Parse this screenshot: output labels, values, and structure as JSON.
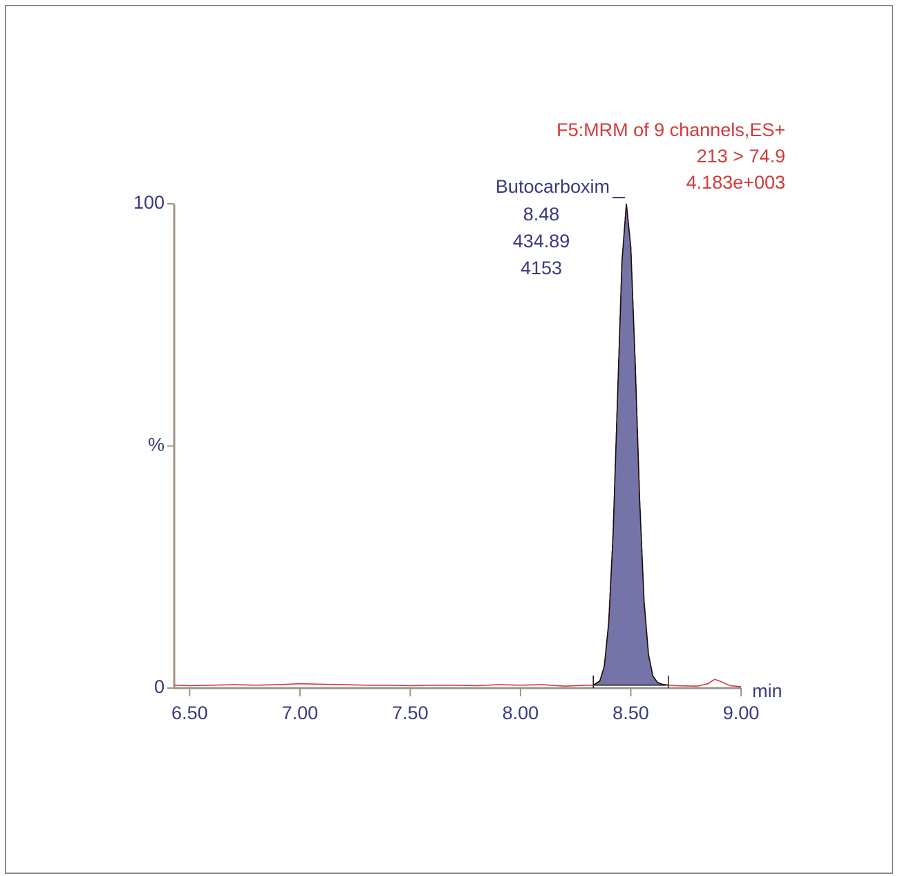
{
  "chart_data": {
    "type": "line",
    "header": [
      "F5:MRM of 9 channels,ES+",
      "213 > 74.9",
      "4.183e+003"
    ],
    "header_color": "#d43a3a",
    "peak_label": {
      "name": "Butocarboxim",
      "lines": [
        8.48,
        434.89,
        4153
      ]
    },
    "x_label": "min",
    "x": [
      6.43,
      6.5,
      6.6,
      6.7,
      6.8,
      6.9,
      7.0,
      7.1,
      7.2,
      7.3,
      7.4,
      7.5,
      7.6,
      7.7,
      7.8,
      7.9,
      8.0,
      8.1,
      8.2,
      8.3,
      8.33,
      8.36,
      8.38,
      8.4,
      8.42,
      8.44,
      8.46,
      8.48,
      8.5,
      8.52,
      8.54,
      8.56,
      8.58,
      8.6,
      8.62,
      8.64,
      8.67,
      8.7,
      8.8,
      8.85,
      8.88,
      8.9,
      8.95,
      9.0
    ],
    "series": [
      {
        "color": "#d43a3a",
        "values": [
          0.6,
          0.5,
          0.6,
          0.7,
          0.6,
          0.7,
          0.9,
          0.8,
          0.7,
          0.6,
          0.6,
          0.5,
          0.6,
          0.6,
          0.5,
          0.7,
          0.6,
          0.7,
          0.4,
          0.6,
          0.6,
          1.5,
          4.5,
          13.5,
          32,
          60,
          88,
          100,
          91,
          67,
          39,
          18,
          7,
          2.5,
          1.2,
          0.8,
          0.6,
          0.5,
          0.4,
          0.9,
          1.8,
          1.5,
          0.5,
          0.3
        ]
      }
    ],
    "peak": {
      "start": 8.33,
      "end": 8.67,
      "fill": "#7474a8",
      "outline": "#111111"
    },
    "axis_color": "#a09488",
    "text_color": "#3a3a80",
    "xlim": [
      6.43,
      9.0
    ],
    "ylim": [
      0,
      100
    ],
    "xticks": [
      {
        "value": 6.5,
        "label": "6.50"
      },
      {
        "value": 7.0,
        "label": "7.00"
      },
      {
        "value": 7.5,
        "label": "7.50"
      },
      {
        "value": 8.0,
        "label": "8.00"
      },
      {
        "value": 8.5,
        "label": "8.50"
      },
      {
        "value": 9.0,
        "label": "9.00"
      }
    ],
    "yticks": [
      0,
      {
        "value": 50,
        "label": "%"
      },
      100
    ]
  }
}
